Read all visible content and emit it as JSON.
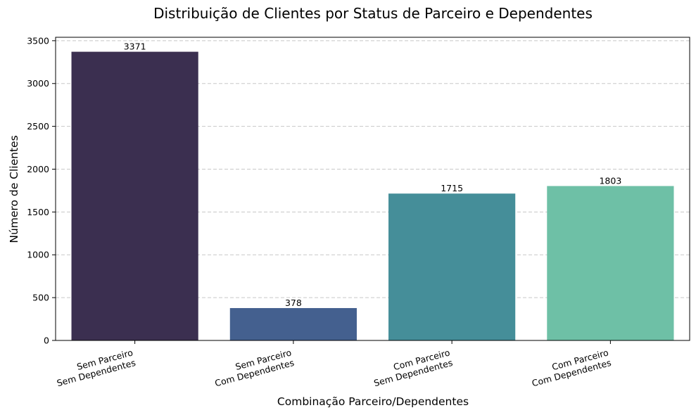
{
  "chart_data": {
    "type": "bar",
    "title": "Distribuição de Clientes por Status de Parceiro e Dependentes",
    "xlabel": "Combinação Parceiro/Dependentes",
    "ylabel": "Número de Clientes",
    "categories": [
      [
        "Sem Parceiro",
        "Sem Dependentes"
      ],
      [
        "Sem Parceiro",
        "Com Dependentes"
      ],
      [
        "Com Parceiro",
        "Sem Dependentes"
      ],
      [
        "Com Parceiro",
        "Com Dependentes"
      ]
    ],
    "values": [
      3371,
      378,
      1715,
      1803
    ],
    "data_labels": [
      "3371",
      "378",
      "1715",
      "1803"
    ],
    "bar_colors": [
      "#3b2f50",
      "#44608f",
      "#458e99",
      "#6ec0a6"
    ],
    "ylim": [
      0,
      3540
    ],
    "yticks": [
      0,
      500,
      1000,
      1500,
      2000,
      2500,
      3000,
      3500
    ],
    "grid": "y dashed",
    "legend": "none"
  }
}
